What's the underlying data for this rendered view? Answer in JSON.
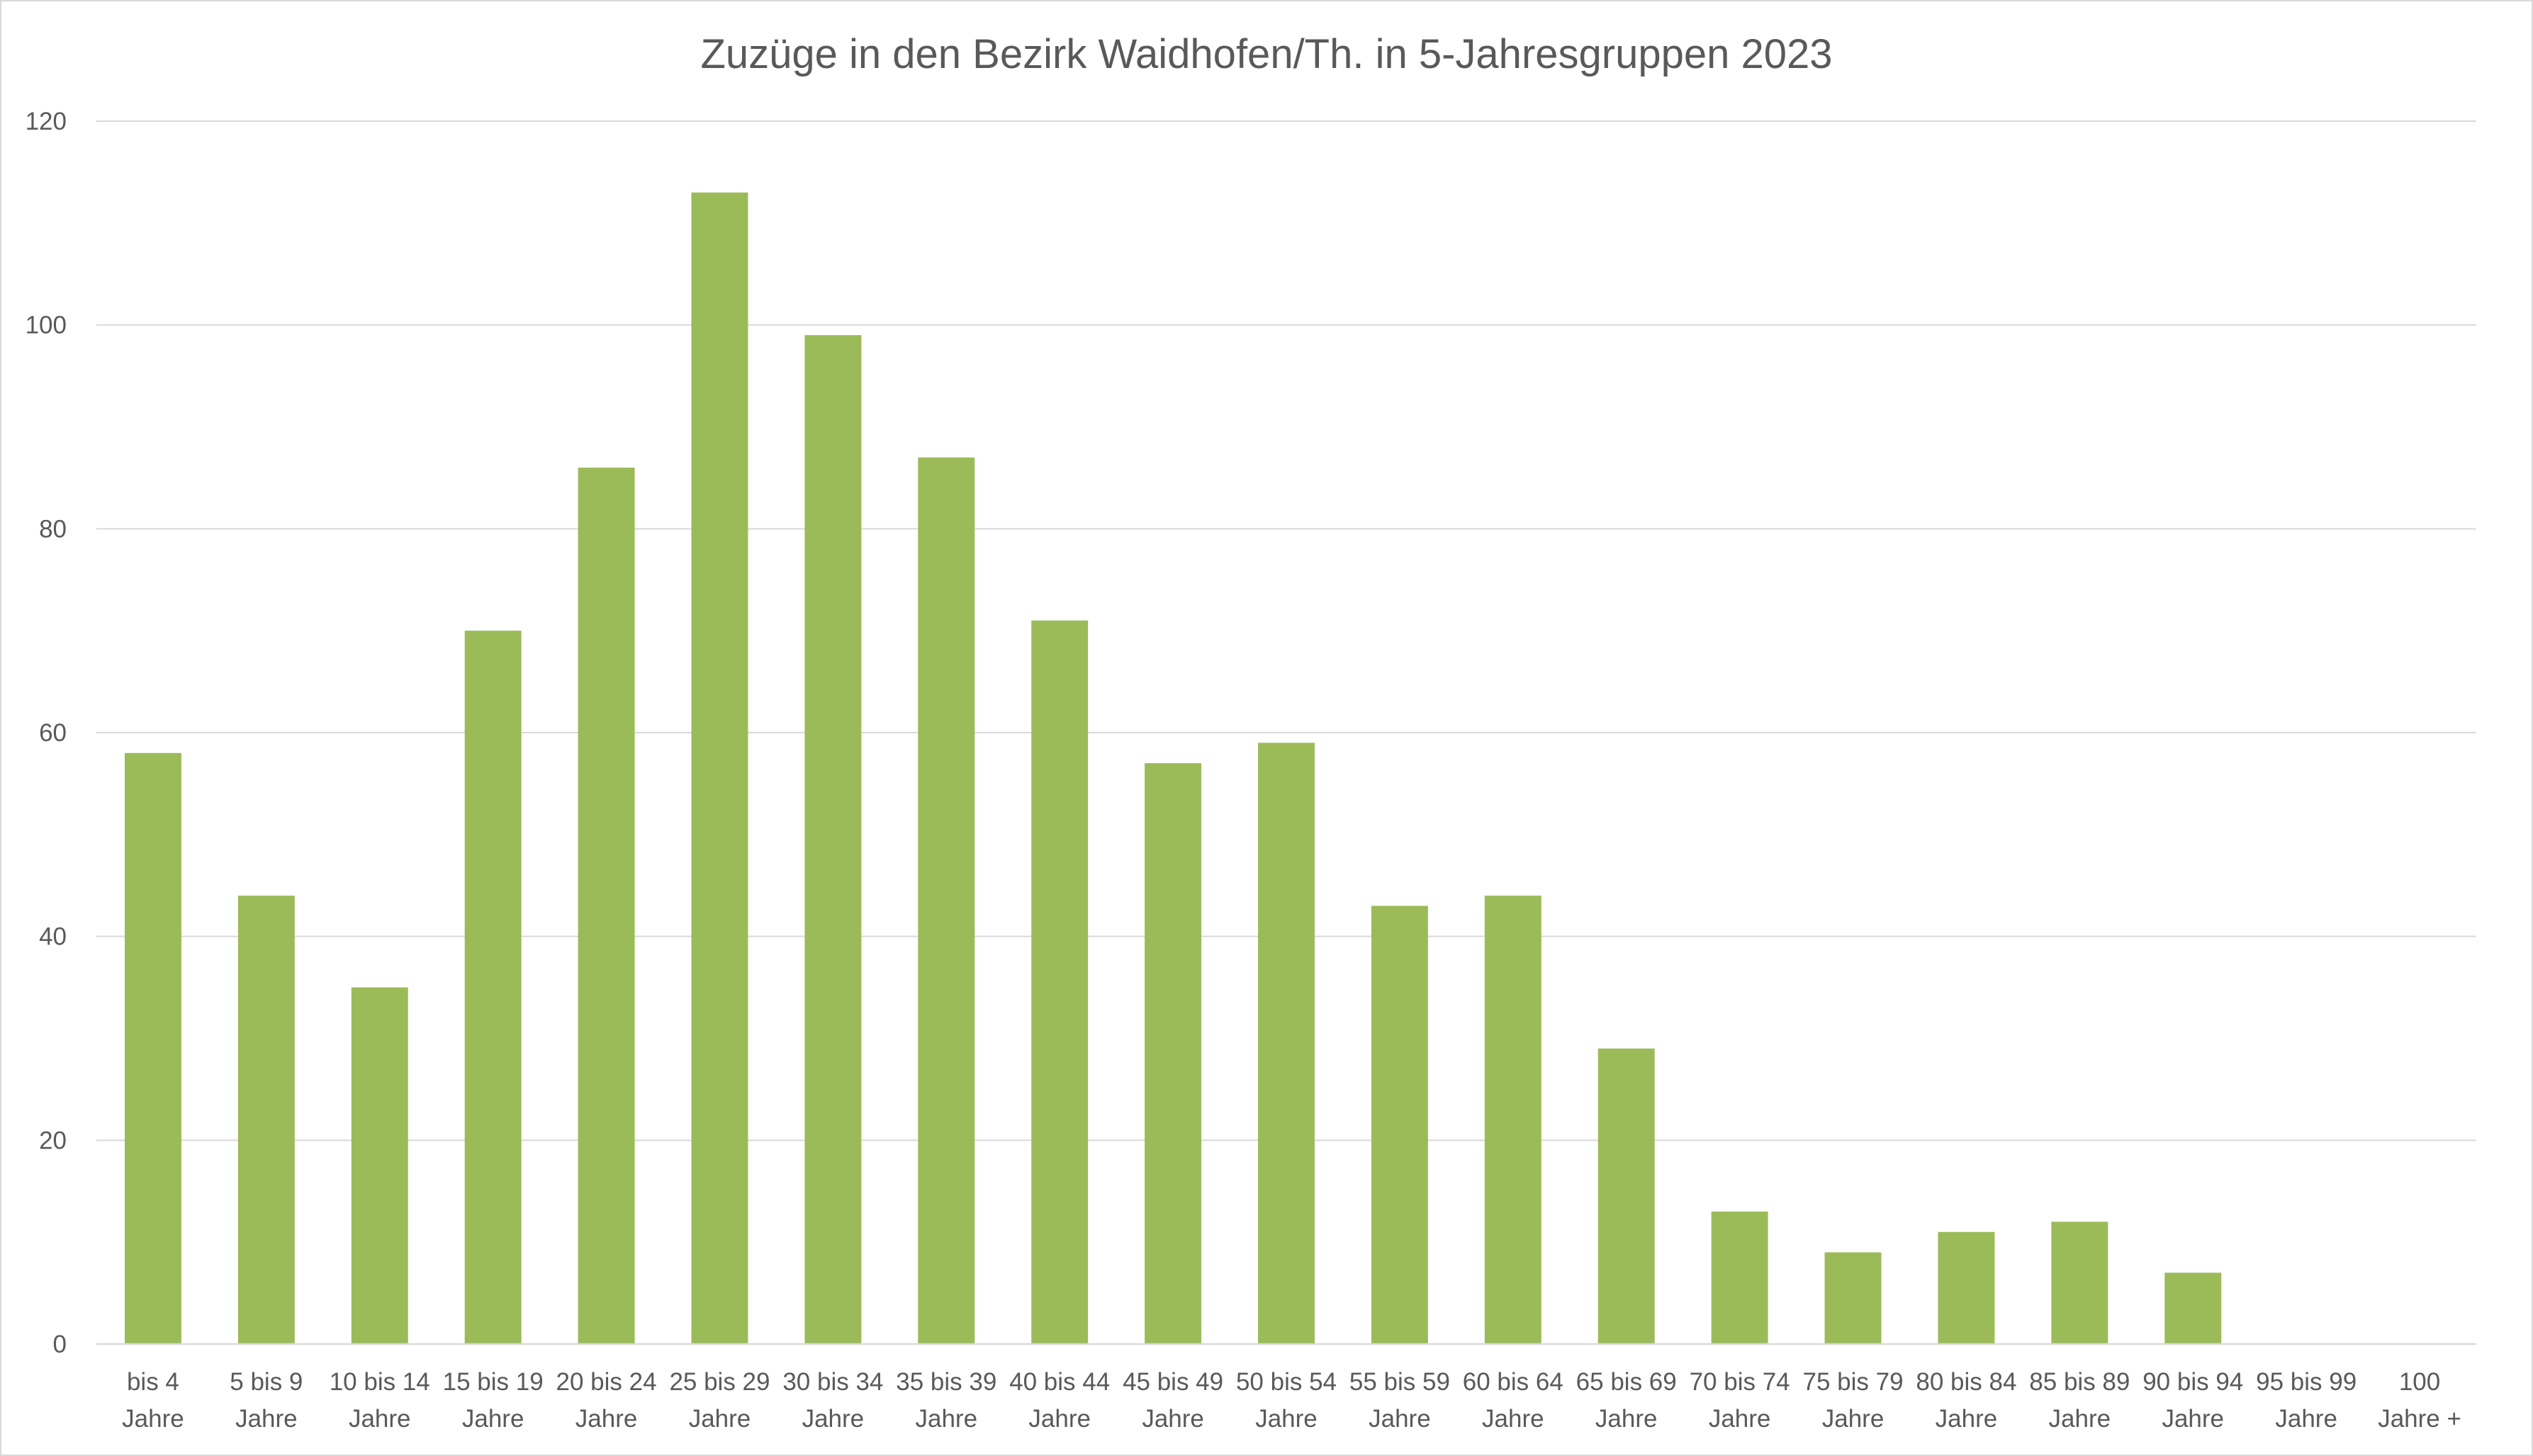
{
  "chart_data": {
    "type": "bar",
    "title": "Zuzüge in den Bezirk Waidhofen/Th. in 5-Jahresgruppen 2023",
    "xlabel": "",
    "ylabel": "",
    "ylim": [
      0,
      120
    ],
    "yticks": [
      0,
      20,
      40,
      60,
      80,
      100,
      120
    ],
    "grid": true,
    "legend": "none",
    "bar_color": "#9bbb59",
    "categories": [
      [
        "bis 4",
        "Jahre"
      ],
      [
        "5 bis 9",
        "Jahre"
      ],
      [
        "10 bis 14",
        "Jahre"
      ],
      [
        "15 bis 19",
        "Jahre"
      ],
      [
        "20 bis 24",
        "Jahre"
      ],
      [
        "25 bis 29",
        "Jahre"
      ],
      [
        "30 bis 34",
        "Jahre"
      ],
      [
        "35 bis 39",
        "Jahre"
      ],
      [
        "40 bis 44",
        "Jahre"
      ],
      [
        "45 bis 49",
        "Jahre"
      ],
      [
        "50 bis 54",
        "Jahre"
      ],
      [
        "55 bis 59",
        "Jahre"
      ],
      [
        "60 bis 64",
        "Jahre"
      ],
      [
        "65 bis 69",
        "Jahre"
      ],
      [
        "70 bis 74",
        "Jahre"
      ],
      [
        "75 bis 79",
        "Jahre"
      ],
      [
        "80 bis 84",
        "Jahre"
      ],
      [
        "85 bis 89",
        "Jahre"
      ],
      [
        "90 bis 94",
        "Jahre"
      ],
      [
        "95 bis 99",
        "Jahre"
      ],
      [
        "100",
        "Jahre +"
      ]
    ],
    "values": [
      58,
      44,
      35,
      70,
      86,
      113,
      99,
      87,
      71,
      57,
      59,
      43,
      44,
      29,
      13,
      9,
      11,
      12,
      7,
      0,
      0
    ]
  }
}
